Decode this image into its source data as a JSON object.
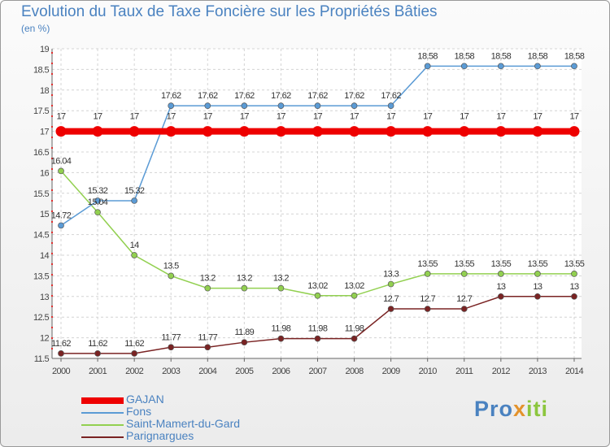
{
  "header": {
    "title": "Evolution du Taux de Taxe Foncière sur les Propriétés Bâties",
    "unit": "(en %)"
  },
  "logo": {
    "part1": "Pro",
    "part2": "x",
    "part3": "iti"
  },
  "chart_data": {
    "type": "line",
    "title": "Evolution du Taux de Taxe Foncière sur les Propriétés Bâties",
    "ylabel": "(en %)",
    "xlabel": "",
    "ylim": [
      11.5,
      19
    ],
    "yticks": [
      11.5,
      12,
      12.5,
      13,
      13.5,
      14,
      14.5,
      15,
      15.5,
      16,
      16.5,
      17,
      17.5,
      18,
      18.5,
      19
    ],
    "x": [
      "2000",
      "2001",
      "2002",
      "2003",
      "2004",
      "2005",
      "2006",
      "2007",
      "2008",
      "2009",
      "2010",
      "2011",
      "2012",
      "2013",
      "2014"
    ],
    "grid": true,
    "legend_position": "bottom-left",
    "series": [
      {
        "name": "GAJAN",
        "color": "#ee0000",
        "thick": true,
        "values": [
          17,
          17,
          17,
          17,
          17,
          17,
          17,
          17,
          17,
          17,
          17,
          17,
          17,
          17,
          17
        ],
        "labels": [
          "17",
          "17",
          "17",
          "17",
          "17",
          "17",
          "17",
          "17",
          "17",
          "17",
          "17",
          "17",
          "17",
          "17",
          "17"
        ]
      },
      {
        "name": "Fons",
        "color": "#5b9bd5",
        "values": [
          14.72,
          15.32,
          15.32,
          17.62,
          17.62,
          17.62,
          17.62,
          17.62,
          17.62,
          17.62,
          18.58,
          18.58,
          18.58,
          18.58,
          18.58
        ],
        "labels": [
          "14.72",
          "15.32",
          "15.32",
          "17.62",
          "17.62",
          "17.62",
          "17.62",
          "17.62",
          "17.62",
          "17.62",
          "18.58",
          "18.58",
          "18.58",
          "18.58",
          "18.58"
        ]
      },
      {
        "name": "Saint-Mamert-du-Gard",
        "color": "#92d050",
        "values": [
          16.04,
          15.04,
          14,
          13.5,
          13.2,
          13.2,
          13.2,
          13.02,
          13.02,
          13.3,
          13.55,
          13.55,
          13.55,
          13.55,
          13.55
        ],
        "labels": [
          "16.04",
          "15.04",
          "14",
          "13.5",
          "13.2",
          "13.2",
          "13.2",
          "13.02",
          "13.02",
          "13.3",
          "13.55",
          "13.55",
          "13.55",
          "13.55",
          "13.55"
        ]
      },
      {
        "name": "Parignargues",
        "color": "#7a2323",
        "values": [
          11.62,
          11.62,
          11.62,
          11.77,
          11.77,
          11.89,
          11.98,
          11.98,
          11.98,
          12.7,
          12.7,
          12.7,
          13,
          13,
          13
        ],
        "labels": [
          "11.62",
          "11.62",
          "11.62",
          "11.77",
          "11.77",
          "11.89",
          "11.98",
          "11.98",
          "11.98",
          "12.7",
          "12.7",
          "12.7",
          "13",
          "13",
          "13"
        ]
      }
    ]
  }
}
